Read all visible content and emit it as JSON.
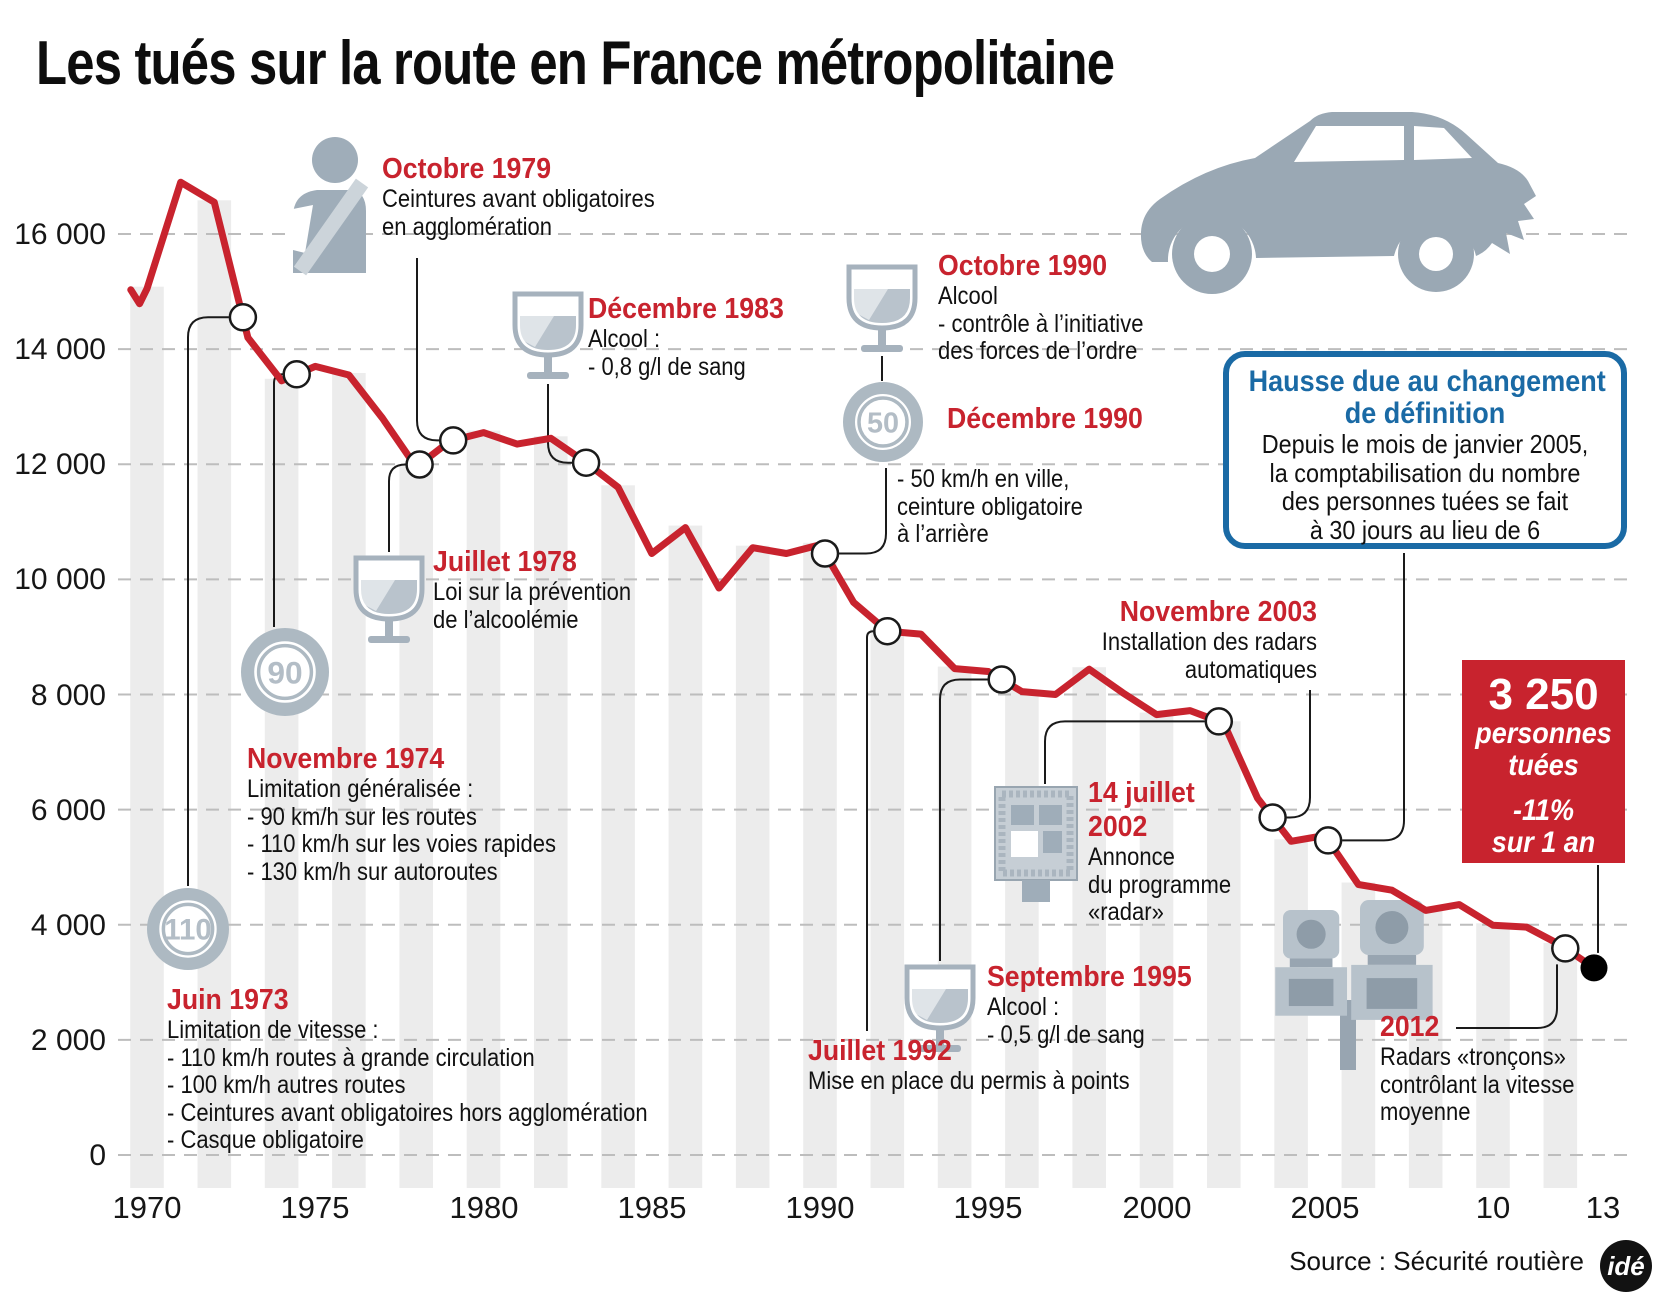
{
  "title": "Les tués sur la route en France métropolitaine",
  "source": {
    "label": "Source : Sécurité routière",
    "logo": "idé"
  },
  "colors": {
    "line_red": "#c8232e",
    "blue": "#1a6aa5",
    "icon_gray": "#9fadb9",
    "icon_gray_light": "#c6ced5",
    "stripe": "#ececec",
    "grid": "#bdbdbd"
  },
  "chart_data": {
    "type": "line",
    "title": "Les tués sur la route en France métropolitaine",
    "xlabel": "",
    "ylabel": "",
    "x": [
      1970,
      1971,
      1972,
      1973,
      1974,
      1975,
      1976,
      1977,
      1978,
      1979,
      1980,
      1981,
      1982,
      1983,
      1984,
      1985,
      1986,
      1987,
      1988,
      1989,
      1990,
      1991,
      1992,
      1993,
      1994,
      1995,
      1996,
      1997,
      1998,
      1999,
      2000,
      2001,
      2002,
      2003,
      2004,
      2005,
      2006,
      2007,
      2008,
      2009,
      2010,
      2011,
      2012,
      2013
    ],
    "values": [
      15050,
      16900,
      16550,
      14200,
      13450,
      13700,
      13550,
      12800,
      11950,
      12400,
      12550,
      12350,
      12450,
      12050,
      11600,
      10450,
      10900,
      9850,
      10550,
      10450,
      10600,
      9600,
      9100,
      9050,
      8450,
      8400,
      8050,
      8000,
      8440,
      8030,
      7650,
      7720,
      7500,
      6200,
      5450,
      5550,
      4700,
      4600,
      4250,
      4350,
      3990,
      3960,
      3650,
      3250
    ],
    "lead_in": [
      [
        1969.52,
        15030
      ],
      [
        1969.78,
        14790
      ]
    ],
    "ylim": [
      0,
      17500
    ],
    "grid": "dashed horizontal",
    "y_tick_values": [
      16000,
      14000,
      12000,
      10000,
      8000,
      6000,
      4000,
      2000,
      0
    ],
    "y_tick_labels": [
      "16 000",
      "14 000",
      "12 000",
      "10 000",
      "8 000",
      "6 000",
      "4 000",
      "2 000",
      "0"
    ],
    "x_tick_years": [
      1970,
      1975,
      1980,
      1985,
      1990,
      1995,
      2000,
      2005,
      2010,
      2013
    ],
    "x_tick_labels": [
      "1970",
      "1975",
      "1980",
      "1985",
      "1990",
      "1995",
      "2000",
      "2005",
      "10",
      "13"
    ],
    "final_point": {
      "year": 2013,
      "value": 3250,
      "label": "3 250"
    }
  },
  "events": [
    {
      "id": "juin-1973",
      "date_lines": [
        "Juin 1973"
      ],
      "lines": [
        "Limitation de vitesse :",
        "- 110 km/h routes à grande circulation",
        "- 100 km/h autres routes",
        "- Ceintures avant obligatoires hors agglomération",
        "- Casque obligatoire"
      ],
      "icon": "speed-limit-sign",
      "sign_label": "110",
      "marker_year": 1972.85
    },
    {
      "id": "novembre-1974",
      "date_lines": [
        "Novembre 1974"
      ],
      "lines": [
        "Limitation généralisée :",
        "- 90 km/h sur les routes",
        "- 110 km/h sur les voies rapides",
        "- 130 km/h sur autoroutes"
      ],
      "icon": "speed-limit-sign",
      "sign_label": "90",
      "marker_year": 1974.45
    },
    {
      "id": "juillet-1978",
      "date_lines": [
        "Juillet 1978"
      ],
      "lines": [
        "Loi sur la prévention",
        "de l’alcoolémie"
      ],
      "icon": "wine-glass",
      "sign_label": "",
      "marker_year": 1978.1
    },
    {
      "id": "octobre-1979",
      "date_lines": [
        "Octobre 1979"
      ],
      "lines": [
        "Ceintures avant obligatoires",
        "en agglomération"
      ],
      "icon": "seatbelt-person",
      "sign_label": "",
      "marker_year": 1979.1
    },
    {
      "id": "decembre-1983",
      "date_lines": [
        "Décembre 1983"
      ],
      "lines": [
        "Alcool :",
        "- 0,8 g/l de sang"
      ],
      "icon": "wine-glass",
      "sign_label": "",
      "marker_year": 1983.05
    },
    {
      "id": "octobre-1990",
      "date_lines": [
        "Octobre 1990"
      ],
      "lines": [
        "Alcool",
        "- contrôle à l’initiative",
        "des forces de l’ordre"
      ],
      "icon": "wine-glass",
      "sign_label": "",
      "marker_year": null
    },
    {
      "id": "decembre-1990",
      "date_lines": [
        "Décembre 1990"
      ],
      "lines": [
        "- 50 km/h en ville,",
        "ceinture obligatoire",
        "à l’arrière"
      ],
      "icon": "speed-limit-sign",
      "sign_label": "50",
      "marker_year": 1990.15
    },
    {
      "id": "juillet-1992",
      "date_lines": [
        "Juillet 1992"
      ],
      "lines": [
        "Mise en place du permis à points"
      ],
      "icon": "",
      "sign_label": "",
      "marker_year": 1992.0
    },
    {
      "id": "septembre-1995",
      "date_lines": [
        "Septembre 1995"
      ],
      "lines": [
        "Alcool :",
        "- 0,5 g/l de sang"
      ],
      "icon": "wine-glass",
      "sign_label": "",
      "marker_year": 1995.4
    },
    {
      "id": "quatorze-juillet-2002",
      "date_lines": [
        "14 juillet",
        "2002"
      ],
      "lines": [
        "Annonce",
        "du programme",
        "«radar»"
      ],
      "icon": "speed-camera",
      "sign_label": "",
      "marker_year": 2001.85
    },
    {
      "id": "novembre-2003",
      "date_lines": [
        "Novembre 2003"
      ],
      "lines": [
        "Installation des radars",
        "automatiques"
      ],
      "icon": "",
      "sign_label": "",
      "marker_year": 2003.45
    },
    {
      "id": "radars-troncons-2012",
      "date_lines": [
        "2012"
      ],
      "lines": [
        "Radars «tronçons»",
        "contrôlant la vitesse",
        "moyenne"
      ],
      "icon": "section-speed-camera",
      "sign_label": "",
      "marker_year": 2012.15
    }
  ],
  "definition_callout": {
    "title_lines": [
      "Hausse due au changement",
      "de définition"
    ],
    "body_lines": [
      "Depuis le mois de janvier 2005,",
      "la comptabilisation du nombre",
      "des personnes tuées se fait",
      "à 30 jours au lieu de 6"
    ],
    "marker_year": 2005.1
  },
  "total_callout": {
    "value": "3 250",
    "unit_lines": [
      "personnes",
      "tuées"
    ],
    "delta": "-11%",
    "delta_period": "sur 1 an"
  }
}
